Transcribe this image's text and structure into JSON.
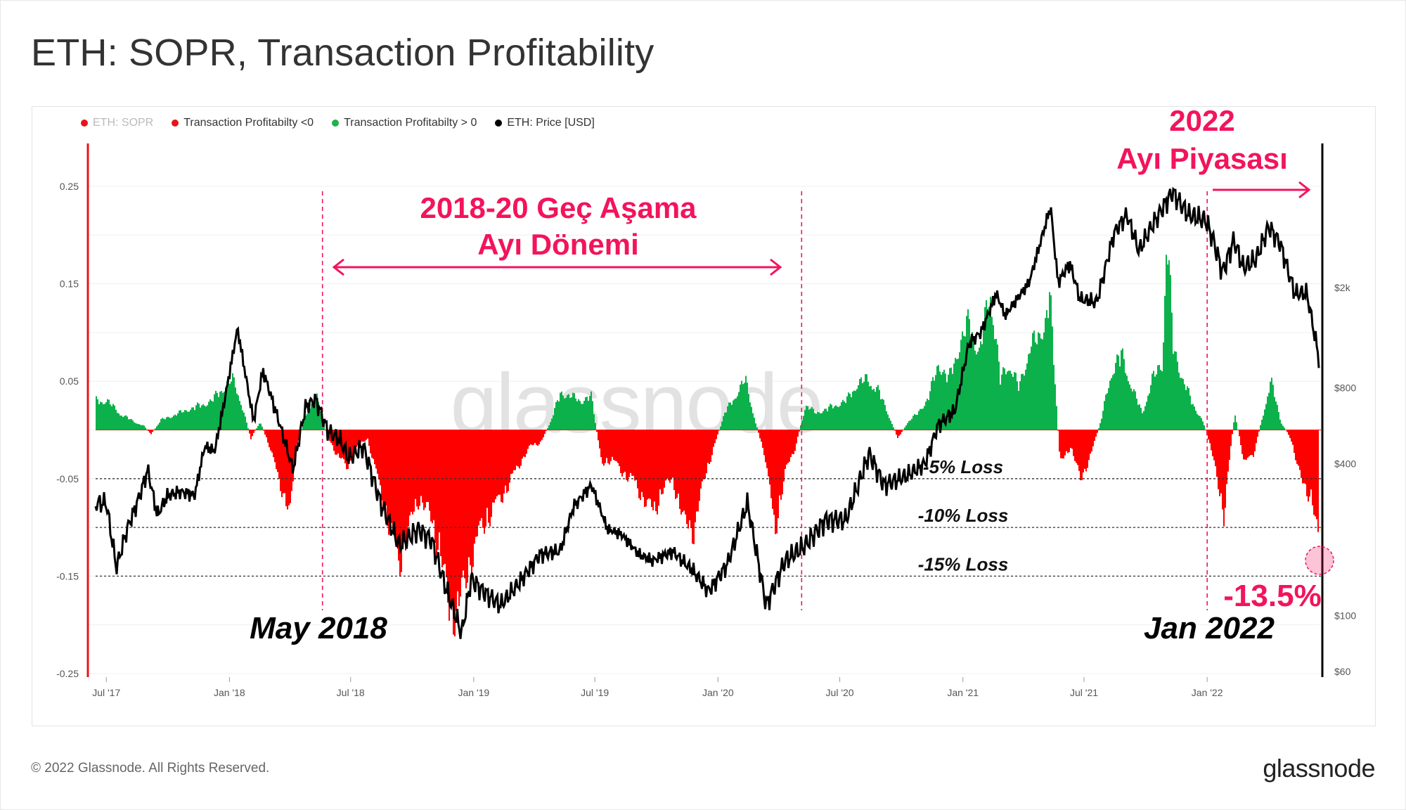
{
  "title": "ETH: SOPR, Transaction Profitability",
  "legend": [
    {
      "label": "ETH: SOPR",
      "color": "#e8141b",
      "faded": true
    },
    {
      "label": "Transaction Profitabilty <0",
      "color": "#e8141b",
      "faded": false
    },
    {
      "label": "Transaction Profitabilty > 0",
      "color": "#1fb34a",
      "faded": false
    },
    {
      "label": "ETH: Price [USD]",
      "color": "#000000",
      "faded": false
    }
  ],
  "footer": "© 2022 Glassnode. All Rights Reserved.",
  "brand": "glassnode",
  "watermark": "glassnode",
  "annotations": {
    "late_bear_line1": "2018-20 Geç Aşama",
    "late_bear_line2": "Ayı Dönemi",
    "bear_2022_line1": "2022",
    "bear_2022_line2": "Ayı Piyasası",
    "may_2018": "May 2018",
    "jan_2022": "Jan 2022",
    "current_value": "-13.5%",
    "loss_5": "-5% Loss",
    "loss_10": "-10% Loss",
    "loss_15": "-15% Loss"
  },
  "colors": {
    "negative": "#ff0000",
    "positive": "#0db14b",
    "price": "#000000",
    "accent": "#f2145c",
    "left_axis": "#e8141b"
  },
  "chart_data": {
    "type": "area",
    "x_tick_labels": [
      "Jul '17",
      "Jan '18",
      "Jul '18",
      "Jan '19",
      "Jul '19",
      "Jan '20",
      "Jul '20",
      "Jan '21",
      "Jul '21",
      "Jan '22"
    ],
    "x_tick_dates": [
      "2017-07-01",
      "2018-01-01",
      "2018-07-01",
      "2019-01-01",
      "2019-07-01",
      "2020-01-01",
      "2020-07-01",
      "2021-01-01",
      "2021-07-01",
      "2022-01-01"
    ],
    "x_range": [
      "2017-06-15",
      "2022-06-20"
    ],
    "left_axis": {
      "ticks": [
        0.25,
        0.15,
        0.05,
        -0.05,
        -0.15,
        -0.25
      ],
      "tick_labels": [
        "0.25",
        "0.15",
        "0.05",
        "-0.05",
        "-0.15",
        "-0.25"
      ],
      "range": [
        -0.25,
        0.25
      ]
    },
    "right_axis": {
      "scale": "log",
      "ticks": [
        2000,
        800,
        400,
        100,
        60
      ],
      "tick_labels": [
        "$2k",
        "$800",
        "$400",
        "$100",
        "$60"
      ],
      "range": [
        60,
        6000
      ]
    },
    "reference_lines": [
      -0.05,
      -0.1,
      -0.15
    ],
    "event_dates": [
      "2018-05-20",
      "2020-05-05",
      "2022-01-01"
    ],
    "profitability_series": [
      [
        "2017-07-01",
        0.035
      ],
      [
        "2017-07-20",
        0.02
      ],
      [
        "2017-08-10",
        0.01
      ],
      [
        "2017-08-25",
        0.005
      ],
      [
        "2017-09-05",
        -0.005
      ],
      [
        "2017-09-20",
        0.012
      ],
      [
        "2017-10-10",
        0.018
      ],
      [
        "2017-11-01",
        0.025
      ],
      [
        "2017-11-20",
        0.03
      ],
      [
        "2017-12-05",
        0.035
      ],
      [
        "2017-12-20",
        0.05
      ],
      [
        "2018-01-05",
        0.06
      ],
      [
        "2018-01-15",
        0.04
      ],
      [
        "2018-02-01",
        -0.01
      ],
      [
        "2018-02-15",
        0.01
      ],
      [
        "2018-03-01",
        -0.02
      ],
      [
        "2018-03-15",
        -0.06
      ],
      [
        "2018-04-01",
        -0.1
      ],
      [
        "2018-04-10",
        -0.02
      ],
      [
        "2018-04-25",
        0.02
      ],
      [
        "2018-05-10",
        0.04
      ],
      [
        "2018-05-25",
        -0.005
      ],
      [
        "2018-06-10",
        -0.03
      ],
      [
        "2018-06-25",
        -0.045
      ],
      [
        "2018-07-10",
        -0.02
      ],
      [
        "2018-07-25",
        -0.01
      ],
      [
        "2018-08-10",
        -0.06
      ],
      [
        "2018-08-25",
        -0.11
      ],
      [
        "2018-09-10",
        -0.16
      ],
      [
        "2018-09-25",
        -0.12
      ],
      [
        "2018-10-10",
        -0.08
      ],
      [
        "2018-10-25",
        -0.1
      ],
      [
        "2018-11-10",
        -0.14
      ],
      [
        "2018-11-25",
        -0.22
      ],
      [
        "2018-12-10",
        -0.21
      ],
      [
        "2018-12-25",
        -0.16
      ],
      [
        "2019-01-10",
        -0.12
      ],
      [
        "2019-01-25",
        -0.1
      ],
      [
        "2019-02-10",
        -0.08
      ],
      [
        "2019-02-25",
        -0.06
      ],
      [
        "2019-03-10",
        -0.04
      ],
      [
        "2019-03-25",
        -0.02
      ],
      [
        "2019-04-10",
        -0.015
      ],
      [
        "2019-04-25",
        0.01
      ],
      [
        "2019-05-10",
        0.045
      ],
      [
        "2019-05-25",
        0.04
      ],
      [
        "2019-06-10",
        0.035
      ],
      [
        "2019-06-25",
        0.04
      ],
      [
        "2019-07-10",
        -0.04
      ],
      [
        "2019-07-25",
        -0.035
      ],
      [
        "2019-08-10",
        -0.05
      ],
      [
        "2019-08-25",
        -0.06
      ],
      [
        "2019-09-10",
        -0.08
      ],
      [
        "2019-09-25",
        -0.1
      ],
      [
        "2019-10-10",
        -0.07
      ],
      [
        "2019-10-25",
        -0.06
      ],
      [
        "2019-11-10",
        -0.11
      ],
      [
        "2019-11-25",
        -0.12
      ],
      [
        "2019-12-10",
        -0.06
      ],
      [
        "2019-12-25",
        -0.02
      ],
      [
        "2020-01-10",
        0.02
      ],
      [
        "2020-01-25",
        0.04
      ],
      [
        "2020-02-10",
        0.06
      ],
      [
        "2020-02-25",
        0.01
      ],
      [
        "2020-03-10",
        -0.03
      ],
      [
        "2020-03-25",
        -0.12
      ],
      [
        "2020-04-10",
        -0.05
      ],
      [
        "2020-04-25",
        -0.02
      ],
      [
        "2020-05-10",
        0.03
      ],
      [
        "2020-05-25",
        0.02
      ],
      [
        "2020-06-10",
        0.025
      ],
      [
        "2020-06-25",
        0.03
      ],
      [
        "2020-07-10",
        0.035
      ],
      [
        "2020-07-25",
        0.055
      ],
      [
        "2020-08-10",
        0.06
      ],
      [
        "2020-08-25",
        0.05
      ],
      [
        "2020-09-10",
        0.02
      ],
      [
        "2020-09-25",
        -0.01
      ],
      [
        "2020-10-10",
        0.01
      ],
      [
        "2020-10-25",
        0.02
      ],
      [
        "2020-11-10",
        0.04
      ],
      [
        "2020-11-25",
        0.08
      ],
      [
        "2020-12-10",
        0.06
      ],
      [
        "2020-12-25",
        0.1
      ],
      [
        "2021-01-10",
        0.13
      ],
      [
        "2021-01-25",
        0.09
      ],
      [
        "2021-02-10",
        0.17
      ],
      [
        "2021-02-25",
        0.06
      ],
      [
        "2021-03-10",
        0.08
      ],
      [
        "2021-03-25",
        0.05
      ],
      [
        "2021-04-10",
        0.1
      ],
      [
        "2021-04-25",
        0.11
      ],
      [
        "2021-05-10",
        0.16
      ],
      [
        "2021-05-25",
        -0.04
      ],
      [
        "2021-06-10",
        -0.02
      ],
      [
        "2021-06-25",
        -0.06
      ],
      [
        "2021-07-10",
        -0.03
      ],
      [
        "2021-07-25",
        0.01
      ],
      [
        "2021-08-10",
        0.07
      ],
      [
        "2021-08-25",
        0.09
      ],
      [
        "2021-09-10",
        0.05
      ],
      [
        "2021-09-25",
        0.02
      ],
      [
        "2021-10-10",
        0.06
      ],
      [
        "2021-10-25",
        0.08
      ],
      [
        "2021-11-01",
        0.24
      ],
      [
        "2021-11-10",
        0.1
      ],
      [
        "2021-11-25",
        0.06
      ],
      [
        "2021-12-10",
        0.03
      ],
      [
        "2021-12-25",
        0.01
      ],
      [
        "2022-01-05",
        -0.02
      ],
      [
        "2022-01-15",
        -0.06
      ],
      [
        "2022-01-25",
        -0.1
      ],
      [
        "2022-02-10",
        0.02
      ],
      [
        "2022-02-25",
        -0.04
      ],
      [
        "2022-03-10",
        -0.03
      ],
      [
        "2022-03-25",
        0.02
      ],
      [
        "2022-04-05",
        0.06
      ],
      [
        "2022-04-20",
        0.01
      ],
      [
        "2022-05-05",
        -0.01
      ],
      [
        "2022-05-20",
        -0.06
      ],
      [
        "2022-06-05",
        -0.08
      ],
      [
        "2022-06-15",
        -0.135
      ]
    ],
    "price_series": [
      [
        "2017-07-01",
        280
      ],
      [
        "2017-07-16",
        155
      ],
      [
        "2017-08-01",
        220
      ],
      [
        "2017-08-20",
        300
      ],
      [
        "2017-09-01",
        380
      ],
      [
        "2017-09-15",
        250
      ],
      [
        "2017-10-01",
        300
      ],
      [
        "2017-10-20",
        310
      ],
      [
        "2017-11-10",
        300
      ],
      [
        "2017-11-25",
        470
      ],
      [
        "2017-12-10",
        450
      ],
      [
        "2017-12-25",
        720
      ],
      [
        "2018-01-13",
        1380
      ],
      [
        "2018-02-06",
        590
      ],
      [
        "2018-02-20",
        940
      ],
      [
        "2018-03-15",
        600
      ],
      [
        "2018-04-06",
        380
      ],
      [
        "2018-04-25",
        680
      ],
      [
        "2018-05-10",
        720
      ],
      [
        "2018-05-28",
        540
      ],
      [
        "2018-06-15",
        500
      ],
      [
        "2018-06-28",
        420
      ],
      [
        "2018-07-20",
        470
      ],
      [
        "2018-08-15",
        280
      ],
      [
        "2018-09-12",
        190
      ],
      [
        "2018-10-10",
        220
      ],
      [
        "2018-10-30",
        200
      ],
      [
        "2018-11-20",
        130
      ],
      [
        "2018-12-14",
        85
      ],
      [
        "2018-12-28",
        140
      ],
      [
        "2019-01-15",
        125
      ],
      [
        "2019-02-10",
        110
      ],
      [
        "2019-03-10",
        135
      ],
      [
        "2019-04-10",
        175
      ],
      [
        "2019-05-10",
        180
      ],
      [
        "2019-05-30",
        270
      ],
      [
        "2019-06-26",
        330
      ],
      [
        "2019-07-20",
        220
      ],
      [
        "2019-08-10",
        210
      ],
      [
        "2019-09-05",
        175
      ],
      [
        "2019-09-25",
        165
      ],
      [
        "2019-10-25",
        180
      ],
      [
        "2019-11-25",
        150
      ],
      [
        "2019-12-18",
        125
      ],
      [
        "2020-01-15",
        160
      ],
      [
        "2020-02-14",
        280
      ],
      [
        "2020-03-13",
        110
      ],
      [
        "2020-04-10",
        165
      ],
      [
        "2020-05-10",
        190
      ],
      [
        "2020-06-10",
        240
      ],
      [
        "2020-07-10",
        240
      ],
      [
        "2020-08-14",
        440
      ],
      [
        "2020-09-05",
        330
      ],
      [
        "2020-10-10",
        360
      ],
      [
        "2020-11-05",
        400
      ],
      [
        "2020-11-25",
        570
      ],
      [
        "2020-12-20",
        650
      ],
      [
        "2021-01-10",
        1200
      ],
      [
        "2021-01-28",
        1330
      ],
      [
        "2021-02-20",
        1900
      ],
      [
        "2021-03-05",
        1550
      ],
      [
        "2021-04-10",
        2100
      ],
      [
        "2021-05-12",
        4200
      ],
      [
        "2021-05-23",
        2100
      ],
      [
        "2021-06-10",
        2500
      ],
      [
        "2021-06-25",
        1800
      ],
      [
        "2021-07-20",
        1750
      ],
      [
        "2021-08-15",
        3300
      ],
      [
        "2021-09-03",
        3900
      ],
      [
        "2021-09-21",
        2800
      ],
      [
        "2021-10-10",
        3500
      ],
      [
        "2021-11-10",
        4800
      ],
      [
        "2021-12-04",
        3900
      ],
      [
        "2021-12-30",
        3700
      ],
      [
        "2022-01-10",
        3100
      ],
      [
        "2022-01-24",
        2300
      ],
      [
        "2022-02-10",
        3100
      ],
      [
        "2022-02-24",
        2400
      ],
      [
        "2022-03-15",
        2600
      ],
      [
        "2022-04-03",
        3500
      ],
      [
        "2022-04-20",
        3000
      ],
      [
        "2022-05-12",
        1900
      ],
      [
        "2022-05-30",
        1900
      ],
      [
        "2022-06-13",
        1200
      ],
      [
        "2022-06-18",
        1000
      ]
    ]
  }
}
